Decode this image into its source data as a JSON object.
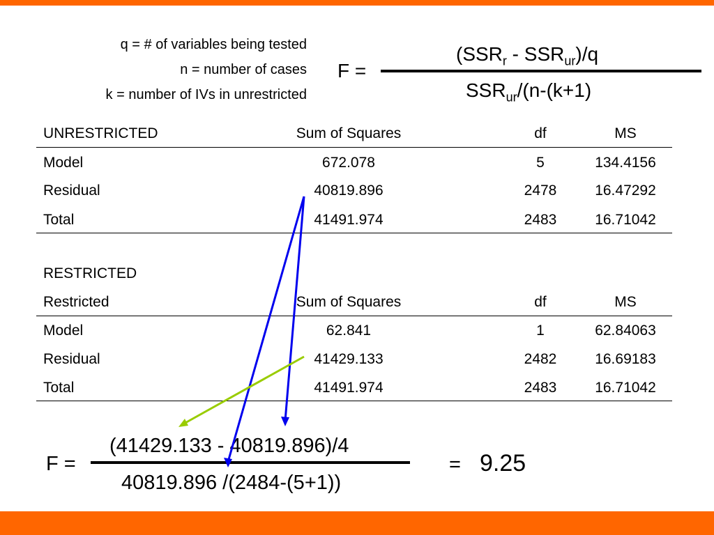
{
  "colors": {
    "accent_bar": "#ff6600",
    "blue_arrow": "#0000ee",
    "green_arrow": "#99cc00"
  },
  "definitions": [
    "q = # of variables being tested",
    "n = number of cases",
    "k = number of IVs in unrestricted"
  ],
  "formula": {
    "lhs": "F =",
    "num_a": "(SSR",
    "num_r": "r",
    "num_b": " - SSR",
    "num_ur": "ur",
    "num_c": ")/q",
    "den_a": "SSR",
    "den_ur": "ur",
    "den_b": "/(n-(k+1)"
  },
  "unrestricted": {
    "headers": [
      "UNRESTRICTED",
      "Sum of Squares",
      "df",
      "MS"
    ],
    "rows": [
      [
        "Model",
        "672.078",
        "5",
        "134.4156"
      ],
      [
        "Residual",
        "40819.896",
        "2478",
        "16.47292"
      ],
      [
        "Total",
        "41491.974",
        "2483",
        "16.71042"
      ]
    ]
  },
  "restricted": {
    "title": "RESTRICTED",
    "headers": [
      "Restricted",
      "Sum of Squares",
      "df",
      "MS"
    ],
    "rows": [
      [
        "Model",
        "62.841",
        "1",
        "62.84063"
      ],
      [
        "Residual",
        "41429.133",
        "2482",
        "16.69183"
      ],
      [
        "Total",
        "41491.974",
        "2483",
        "16.71042"
      ]
    ]
  },
  "calculation": {
    "lhs": "F =",
    "numerator": "(41429.133 - 40819.896)/4",
    "denominator": "40819.896 /(2484-(5+1))",
    "equals": "=",
    "result": "9.25"
  }
}
